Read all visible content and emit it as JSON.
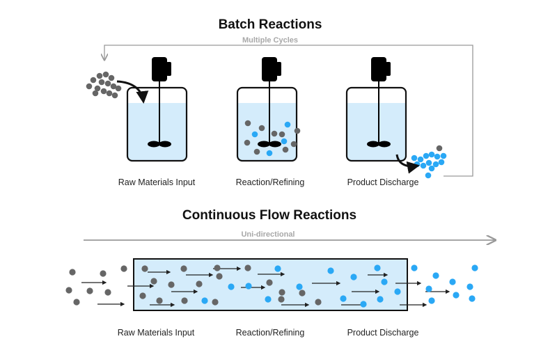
{
  "batch": {
    "title": "Batch Reactions",
    "cycle_label": "Multiple Cycles",
    "stages": [
      "Raw Materials Input",
      "Reaction/Refining",
      "Product Discharge"
    ]
  },
  "continuous": {
    "title": "Continuous Flow Reactions",
    "direction_label": "Uni-directional",
    "stages": [
      "Raw Materials Input",
      "Reaction/Refining",
      "Product Discharge"
    ]
  },
  "colors": {
    "raw_material": "#666666",
    "product": "#2aa8f5",
    "liquid": "#d4ecfb",
    "outline": "#111111",
    "flow_arrow": "#a0a0a0"
  }
}
